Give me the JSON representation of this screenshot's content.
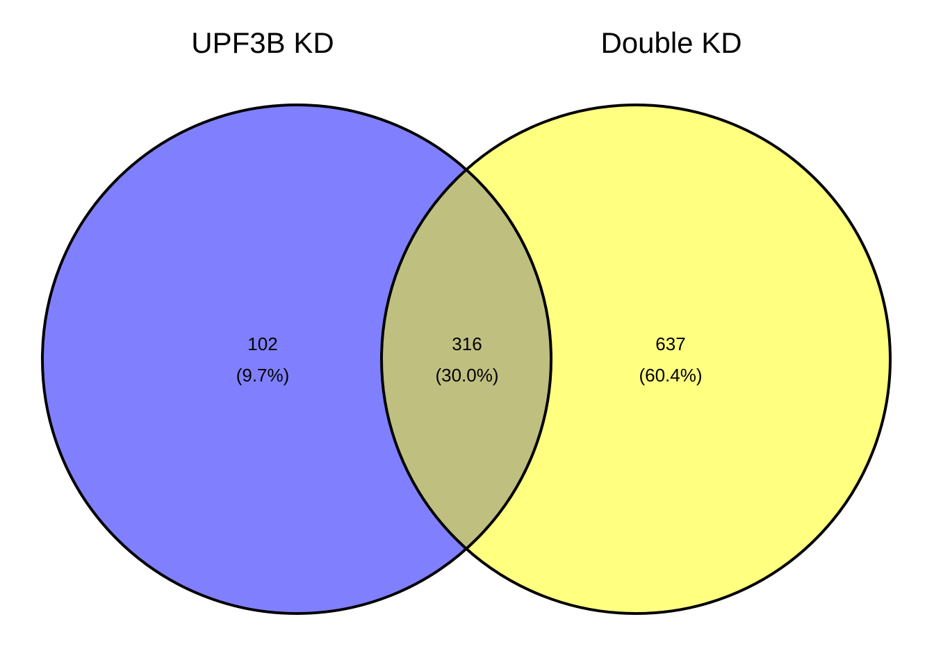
{
  "venn": {
    "sets": [
      {
        "name": "UPF3B KD",
        "color": "#8080ff"
      },
      {
        "name": "Double KD",
        "color": "#ffff80"
      }
    ],
    "overlap_color": "#bfbf80",
    "regions": {
      "only_a": {
        "count": "102",
        "percent": "(9.7%)"
      },
      "both": {
        "count": "316",
        "percent": "(30.0%)"
      },
      "only_b": {
        "count": "637",
        "percent": "(60.4%)"
      }
    }
  }
}
